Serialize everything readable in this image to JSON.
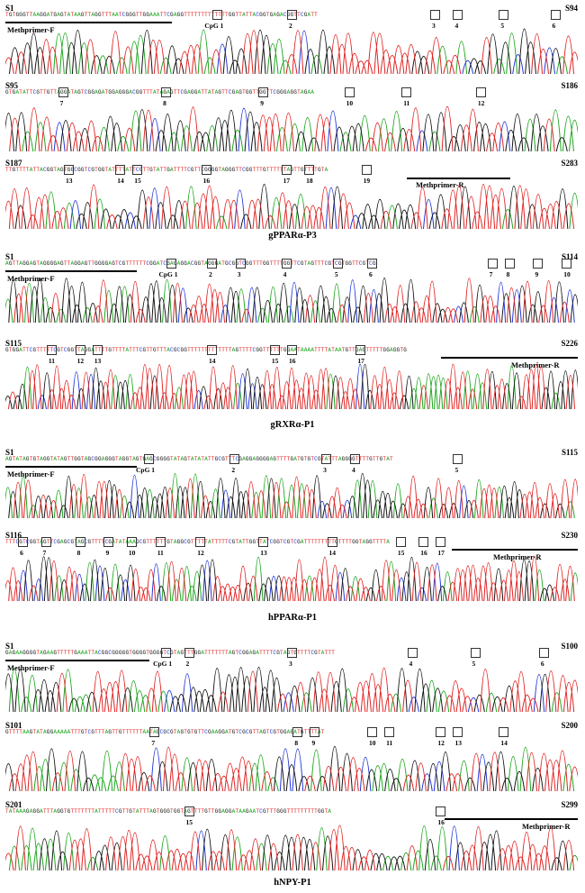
{
  "colors": {
    "A": "#1aa51a",
    "C": "#1f34d8",
    "G": "#111111",
    "T": "#e02020"
  },
  "panels": [
    {
      "id": "gppara-p3",
      "title": "gPPARα-P3",
      "rows": [
        {
          "start": "S1",
          "end": "S94",
          "seq": "TGTGGGTTAAGGATGAGTATAAGTTAGGTTTAATCGGGTTGGAAATTCGAGGTTTTTTTTTTTTTGGTTATTACGGTGAGACGGTTCGATT",
          "primers": [
            {
              "label": "Methprimer-F",
              "from": 0.0,
              "to": 0.3,
              "pos": "below"
            }
          ],
          "cpg": [
            "CpG 1",
            "2",
            "3",
            "4",
            "5",
            "6"
          ],
          "cpgPos": [
            0.37,
            0.5,
            0.75,
            0.79,
            0.87,
            0.96
          ]
        },
        {
          "start": "S95",
          "end": "S186",
          "seq": "GTGATATTCGTTGTTAGGATAGTCGGAGATGGAGGGACGGTTTATAGAGTTCGAGGATTATAGTTCGAGTGGTTGGTTCGGGAGGTAGAA",
          "primers": [],
          "cpg": [
            "7",
            "8",
            "9",
            "10",
            "11",
            "12"
          ],
          "cpgPos": [
            0.1,
            0.28,
            0.45,
            0.6,
            0.7,
            0.83
          ]
        },
        {
          "start": "S187",
          "end": "S283",
          "seq": "TTGTTTTATTACGGTAGTGGCGGTCGTGGTATTTTATTCGTTGTATTGATTTTCGTTCGGGGTAGGGTTCGGTTTGTTTTTTAGTTGTTTTGTA",
          "primers": [
            {
              "label": "Methprimer-R",
              "from": 0.7,
              "to": 0.88,
              "pos": "below"
            }
          ],
          "cpg": [
            "13",
            "14",
            "15",
            "16",
            "17",
            "18",
            "19"
          ],
          "cpgPos": [
            0.11,
            0.2,
            0.23,
            0.35,
            0.49,
            0.53,
            0.63
          ]
        }
      ]
    },
    {
      "id": "grxra-p1",
      "title": "gRXRα-P1",
      "rows": [
        {
          "start": "S1",
          "end": "S114",
          "seq": "AGTTAGGAGTAGGGGAGTTAGGAGTTGGGGAGTCGTTTTTTCGGATCGAGAGGACGGTAGGGATGCGGTCGGTTTGGTTTTGGTTCGTAGTTTCGTCGTGGTTCGTCG",
          "primers": [
            {
              "label": "Methprimer-F",
              "from": 0.0,
              "to": 0.23,
              "pos": "below"
            }
          ],
          "cpg": [
            "CpG 1",
            "2",
            "3",
            "4",
            "5",
            "6",
            "7",
            "8",
            "9",
            "10"
          ],
          "cpgPos": [
            0.29,
            0.36,
            0.41,
            0.49,
            0.58,
            0.64,
            0.85,
            0.88,
            0.93,
            0.98
          ]
        },
        {
          "start": "S115",
          "end": "S226",
          "seq": "GTGGATTCGTTTTTCGTCGGTTAGGATTTTGTTTTATTTCGTTGTTTACGCGGTTTTTTTTTTTTTAGTTTTCGGTTTTTTGGAATAAAATTTTATAATGTTGAGTTTTTGGAGGTG",
          "primers": [
            {
              "label": "Methprimer-R",
              "from": 0.76,
              "to": 1.0,
              "pos": "below"
            }
          ],
          "cpg": [
            "11",
            "12",
            "13",
            "14",
            "15",
            "16",
            "17"
          ],
          "cpgPos": [
            0.08,
            0.13,
            0.16,
            0.36,
            0.47,
            0.5,
            0.62
          ]
        }
      ]
    },
    {
      "id": "hppara-p1",
      "title": "hPPARα-P1",
      "rows": [
        {
          "start": "S1",
          "end": "S115",
          "seq": "AGTATAGTGTAGGTATAGTTGGTAGCGGAGGGTAGGTAGTGAGCGGGGTATAGTATATATTGCGTTTCGAGGAGGGGAGTTTTGATGTGTCGTATTTAGGGGTTTTGTTGTAT",
          "primers": [
            {
              "label": "Methprimer-F",
              "from": 0.0,
              "to": 0.23,
              "pos": "below"
            }
          ],
          "cpg": [
            "CpG 1",
            "2",
            "3",
            "4",
            "5"
          ],
          "cpgPos": [
            0.25,
            0.4,
            0.56,
            0.61,
            0.79
          ]
        },
        {
          "start": "S116",
          "end": "S230",
          "seq": "TTTCGTCGGTAGTTCGAGCGTAGCGTTTTCGATATAAAGCGTTTTTTGTAGGCGTTTTTATTTTTCGTATTGGTTATCGGTCGTCGATTTTTTTTTGTTTTGGTAGGTTTTA",
          "primers": [
            {
              "label": "Methprimer-R",
              "from": 0.78,
              "to": 1.0,
              "pos": "below"
            }
          ],
          "cpg": [
            "6",
            "7",
            "8",
            "9",
            "10",
            "11",
            "12",
            "13",
            "14",
            "15",
            "16",
            "17"
          ],
          "cpgPos": [
            0.03,
            0.07,
            0.13,
            0.18,
            0.22,
            0.27,
            0.34,
            0.45,
            0.57,
            0.69,
            0.73,
            0.76
          ]
        }
      ]
    },
    {
      "id": "hnpy-p1",
      "title": "hNPY-P1",
      "rows": [
        {
          "start": "S1",
          "end": "S100",
          "seq": "GAGAAGGGGTAGAAGTTTTTGAAATTACGGCGGGGGTGGGGTGGGGTCGTAGTTTGGATTTTTTTAGTCGGAGATTTTCGTAGTGTTTTCGTATTT",
          "primers": [
            {
              "label": "Methprimer-F",
              "from": 0.0,
              "to": 0.25,
              "pos": "below"
            }
          ],
          "cpg": [
            "CpG 1",
            "2",
            "3",
            "4",
            "5",
            "6"
          ],
          "cpgPos": [
            0.28,
            0.32,
            0.5,
            0.71,
            0.82,
            0.94
          ]
        },
        {
          "start": "S101",
          "end": "S200",
          "seq": "GTTTTAAGTATAGGAAAAATTTGTCGTTTAGTTGTTTTTTAATAGCGCGTAGTGTGTTCGAAGGATGTCGCGTTAGTCGTGGAGATGTTTTAT",
          "primers": [],
          "cpg": [
            "7",
            "8",
            "9",
            "10",
            "11",
            "12",
            "13",
            "14"
          ],
          "cpgPos": [
            0.26,
            0.51,
            0.54,
            0.64,
            0.67,
            0.76,
            0.79,
            0.87
          ]
        },
        {
          "start": "S201",
          "end": "S299",
          "seq": "TATAAAGAGGATTTAGGTGTTTTTTTATTTTTCGTTGTATTTAGTGGGTGGTAGTTTTGTTGGAGGATAAGAATCGTTTGGGTTTTTTTTTGGTA",
          "primers": [
            {
              "label": "Methprimer-R",
              "from": 0.77,
              "to": 1.0,
              "pos": "below"
            }
          ],
          "cpg": [
            "15",
            "16"
          ],
          "cpgPos": [
            0.32,
            0.76
          ]
        }
      ]
    }
  ]
}
